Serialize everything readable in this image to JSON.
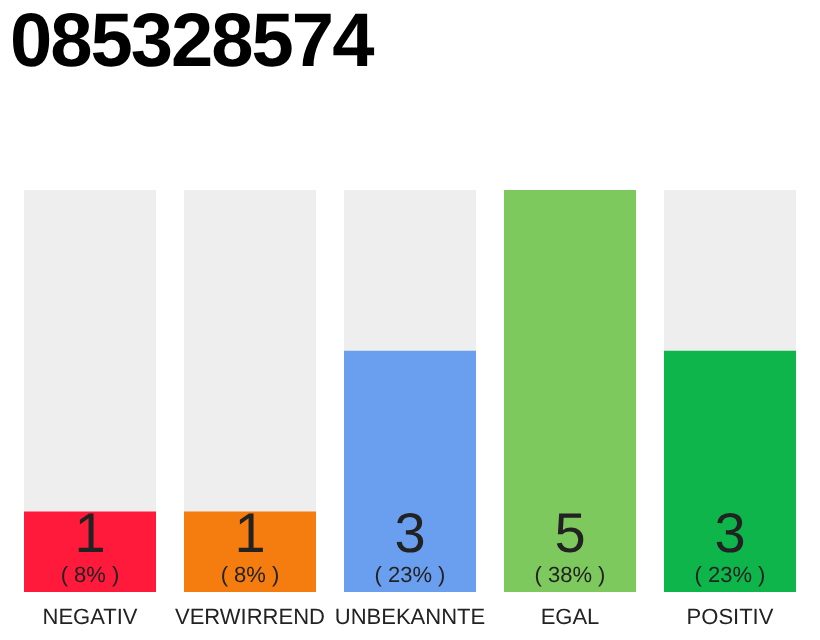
{
  "chart_data": {
    "type": "bar",
    "title": "085328574",
    "categories": [
      "NEGATIV",
      "VERWIRREND",
      "UNBEKANNTE",
      "EGAL",
      "POSITIV"
    ],
    "values": [
      1,
      1,
      3,
      5,
      3
    ],
    "colors": [
      "#ff1a3c",
      "#f57c0f",
      "#6a9ff0",
      "#7dc95e",
      "#0db54a"
    ],
    "value_labels": [
      "1 ( 8% )",
      "1 ( 8% )",
      "3 ( 23% )",
      "5 ( 38% )",
      "3 ( 23% )"
    ],
    "grid": false,
    "legend": false
  }
}
